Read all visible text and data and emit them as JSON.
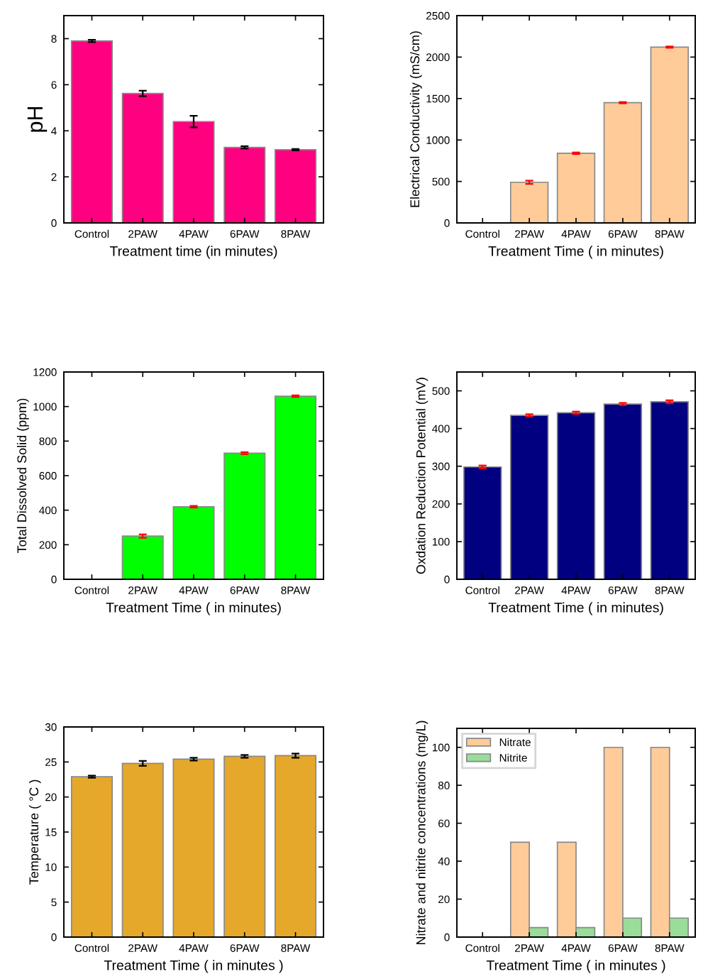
{
  "chart_data": [
    {
      "type": "bar",
      "xlabel": "Treatment time (in minutes)",
      "ylabel": "pH",
      "categories": [
        "Control",
        "2PAW",
        "4PAW",
        "6PAW",
        "8PAW"
      ],
      "series": [
        {
          "color": "#ff0080",
          "values": [
            7.9,
            5.62,
            4.4,
            3.28,
            3.18
          ],
          "errors": [
            0.05,
            0.12,
            0.25,
            0.05,
            0.03
          ]
        }
      ],
      "ylim": [
        0,
        9
      ],
      "yticks": [
        0,
        2,
        4,
        6,
        8
      ],
      "grid": false,
      "legend": false
    },
    {
      "type": "bar",
      "xlabel": "Treatment Time ( in minutes)",
      "ylabel": "Electrical Conductivity (mS/cm)",
      "categories": [
        "Control",
        "2PAW",
        "4PAW",
        "6PAW",
        "8PAW"
      ],
      "series": [
        {
          "color": "#ffcc99",
          "values": [
            null,
            490,
            840,
            1450,
            2120
          ],
          "errors": [
            null,
            20,
            10,
            8,
            8
          ]
        }
      ],
      "ylim": [
        0,
        2500
      ],
      "yticks": [
        0,
        500,
        1000,
        1500,
        2000,
        2500
      ],
      "grid": false,
      "legend": false
    },
    {
      "type": "bar",
      "xlabel": "Treatment Time ( in minutes)",
      "ylabel": "Total Dissolved Solid (ppm)",
      "categories": [
        "Control",
        "2PAW",
        "4PAW",
        "6PAW",
        "8PAW"
      ],
      "series": [
        {
          "color": "#00ff00",
          "values": [
            null,
            250,
            420,
            730,
            1060
          ],
          "errors": [
            null,
            10,
            5,
            6,
            5
          ]
        }
      ],
      "ylim": [
        0,
        1200
      ],
      "yticks": [
        0,
        200,
        400,
        600,
        800,
        1000,
        1200
      ],
      "grid": false,
      "legend": false
    },
    {
      "type": "bar",
      "xlabel": "Treatment Time ( in minutes)",
      "ylabel": "Oxdation Reduction Potential (mV)",
      "categories": [
        "Control",
        "2PAW",
        "4PAW",
        "6PAW",
        "8PAW"
      ],
      "series": [
        {
          "color": "#000080",
          "values": [
            298,
            435,
            442,
            465,
            471
          ],
          "errors": [
            4,
            3,
            3,
            3,
            4
          ]
        }
      ],
      "ylim": [
        0,
        550
      ],
      "yticks": [
        0,
        100,
        200,
        300,
        400,
        500
      ],
      "grid": false,
      "legend": false
    },
    {
      "type": "bar",
      "xlabel": "Treatment Time ( in minutes )",
      "ylabel": "Temperature ( °C )",
      "categories": [
        "Control",
        "2PAW",
        "4PAW",
        "6PAW",
        "8PAW"
      ],
      "series": [
        {
          "color": "#e6a82a",
          "values": [
            22.9,
            24.8,
            25.4,
            25.8,
            25.9
          ],
          "errors": [
            0.15,
            0.35,
            0.2,
            0.2,
            0.3
          ]
        }
      ],
      "ylim": [
        0,
        30
      ],
      "yticks": [
        0,
        5,
        10,
        15,
        20,
        25,
        30
      ],
      "grid": false,
      "legend": false
    },
    {
      "type": "bar",
      "xlabel": "Treatment Time ( in minutes )",
      "ylabel": "Nitrate and nitrite concentrations (mg/L)",
      "categories": [
        "Control",
        "2PAW",
        "4PAW",
        "6PAW",
        "8PAW"
      ],
      "series": [
        {
          "name": "Nitrate",
          "color": "#ffcc99",
          "values": [
            null,
            50,
            50,
            100,
            100
          ]
        },
        {
          "name": "Nitrite",
          "color": "#99dd99",
          "values": [
            null,
            5,
            5,
            10,
            10
          ]
        }
      ],
      "ylim": [
        0,
        110
      ],
      "yticks": [
        0,
        20,
        40,
        60,
        80,
        100
      ],
      "grid": false,
      "legend": "top left"
    }
  ]
}
